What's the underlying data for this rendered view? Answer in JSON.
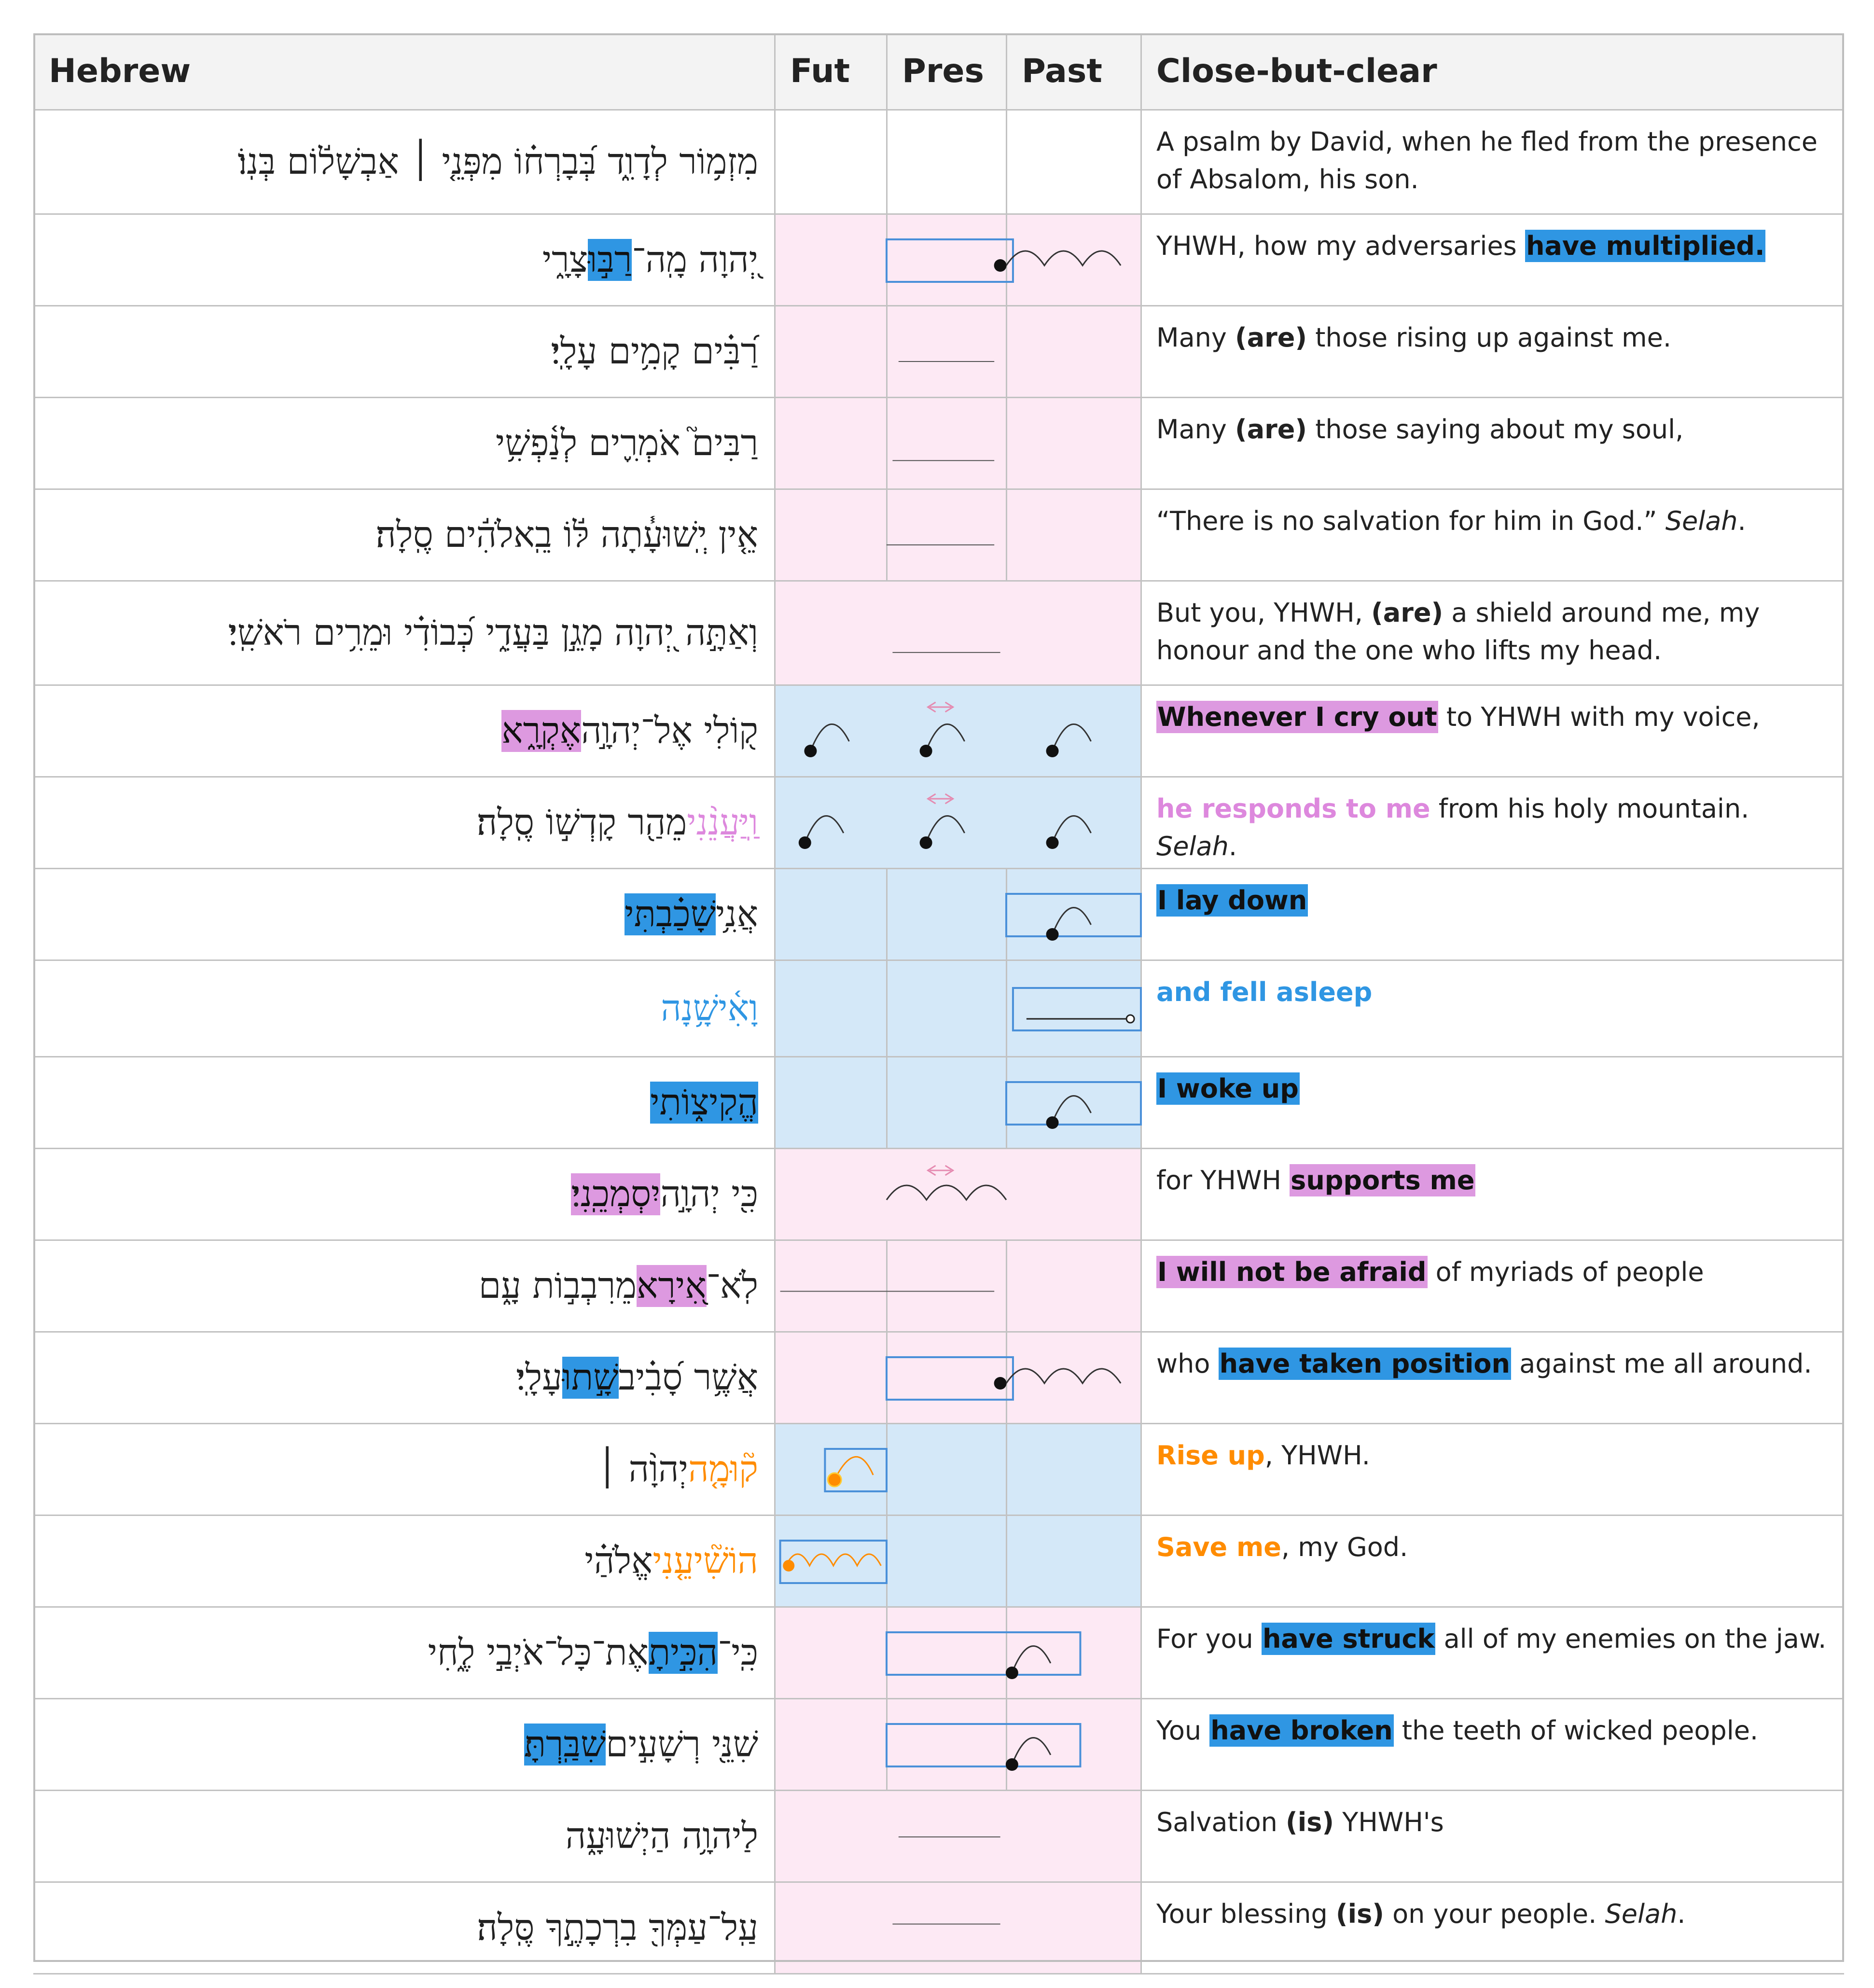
{
  "headers": {
    "hebrew": "Hebrew",
    "fut": "Fut",
    "pres": "Pres",
    "past": "Past",
    "english": "Close-but-clear"
  },
  "colors": {
    "pink_band": "#fde9f4",
    "blue_band": "#d4e8f8",
    "highlight_blue": "#2f96e3",
    "highlight_pink": "#dd99e0",
    "orange": "#ff8c00",
    "box_stroke": "#4a90d9"
  },
  "rows": [
    {
      "band": "white",
      "hebrew": [
        {
          "t": "מִזְמ֥וֹר לְדָוִ֑ד בְּ֝בָרְח֗וֹ מִפְּנֵ֤י ׀ אַבְשָׁל֬וֹם בְּנֽוֹ׃"
        }
      ],
      "english": [
        {
          "t": "A psalm by David, when he fled from the presence of Absalom, his son."
        }
      ],
      "marks": []
    },
    {
      "band": "pink",
      "hebrew": [
        {
          "t": "יְ֭הוָה מָֽה־"
        },
        {
          "t": "רַבּ֣וּ",
          "s": "hl-heb-blue"
        },
        {
          "t": " צָרָ֑י"
        }
      ],
      "english": [
        {
          "t": "YHWH, how my adversaries "
        },
        {
          "t": "have multiplied.",
          "s": "hl hl-blue"
        }
      ],
      "marks": [
        {
          "k": "box",
          "c": [
            1,
            2.05
          ]
        },
        {
          "k": "dot",
          "c": 1.95
        },
        {
          "k": "wave",
          "c": [
            2.0,
            2.85
          ]
        }
      ]
    },
    {
      "band": "pink",
      "hebrew": [
        {
          "t": "רַ֝בִּ֗ים קָמִ֥ים עָלָֽי׃"
        }
      ],
      "english": [
        {
          "t": "Many "
        },
        {
          "t": "(are)",
          "s": "b"
        },
        {
          "t": " those rising up against me."
        }
      ],
      "marks": [
        {
          "k": "line",
          "c": [
            1.1,
            1.9
          ],
          "y": 0.6
        }
      ]
    },
    {
      "band": "pink",
      "hebrew": [
        {
          "t": "רַבִּים֮ אֹמְרִ֪ים לְנַ֫פְשִׁ֥י"
        }
      ],
      "english": [
        {
          "t": "Many "
        },
        {
          "t": "(are)",
          "s": "b"
        },
        {
          "t": " those saying about my soul,"
        }
      ],
      "marks": [
        {
          "k": "line",
          "c": [
            1.05,
            1.9
          ],
          "y": 0.68
        }
      ]
    },
    {
      "band": "pink",
      "hebrew": [
        {
          "t": "אֵ֤ין יְֽשׁוּעָ֓תָה לּ֬וֹ בֵֽאלֹהִ֬ים סֶֽלָה׃"
        }
      ],
      "english": [
        {
          "t": "“There is no salvation for him in God.” "
        },
        {
          "t": "Selah",
          "s": "i"
        },
        {
          "t": "."
        }
      ],
      "marks": [
        {
          "k": "line",
          "c": [
            1.0,
            1.9
          ],
          "y": 0.6
        }
      ]
    },
    {
      "band": "pink",
      "hebrew": [
        {
          "t": "וְאַתָּ֣ה יְ֭הוָה מָגֵ֣ן בַּעֲדִ֑י כְּ֝בוֹדִ֗י וּמֵרִ֥ים רֹאשִֽׁי׃"
        }
      ],
      "english": [
        {
          "t": "But you, YHWH, "
        },
        {
          "t": "(are)",
          "s": "b"
        },
        {
          "t": " a shield around me, my honour and the one who lifts my head."
        }
      ],
      "marks": [
        {
          "k": "line",
          "c": [
            1.05,
            1.95
          ],
          "y": 0.68
        }
      ]
    },
    {
      "band": "blue",
      "hebrew": [
        {
          "t": "ק֭וֹלִי אֶל־יְהוָ֣ה "
        },
        {
          "t": "אֶקְרָ֑א",
          "s": "hl-heb-pink"
        }
      ],
      "english": [
        {
          "t": "Whenever I cry out",
          "s": "hl hl-pink"
        },
        {
          "t": " to YHWH with my voice,"
        }
      ],
      "marks": [
        {
          "k": "arc",
          "c": 0.45
        },
        {
          "k": "arc",
          "c": 1.45
        },
        {
          "k": "arc",
          "c": 2.45
        },
        {
          "k": "arrow",
          "c": 1.45
        }
      ]
    },
    {
      "band": "blue",
      "hebrew": [
        {
          "t": "וַֽיַּעֲנֵ֨נִי",
          "s": "col-pink"
        },
        {
          "t": " מֵהַ֖ר קָדְשׁ֣וֹ סֶֽלָה׃"
        }
      ],
      "english": [
        {
          "t": "he responds to me",
          "s": "b col-pink"
        },
        {
          "t": " from his holy mountain. "
        },
        {
          "t": "Selah",
          "s": "i"
        },
        {
          "t": "."
        }
      ],
      "marks": [
        {
          "k": "arc",
          "c": 0.4
        },
        {
          "k": "arc",
          "c": 1.45
        },
        {
          "k": "arc",
          "c": 2.45
        },
        {
          "k": "arrow",
          "c": 1.45
        }
      ]
    },
    {
      "band": "blue",
      "hebrew": [
        {
          "t": "אֲנִ֥י "
        },
        {
          "t": "שָׁכַ֗בְתִּי",
          "s": "hl-heb-blue"
        }
      ],
      "english": [
        {
          "t": "I lay down",
          "s": "hl hl-blue"
        }
      ],
      "marks": [
        {
          "k": "box",
          "c": [
            2.0,
            3.0
          ]
        },
        {
          "k": "arc",
          "c": 2.45
        }
      ]
    },
    {
      "band": "blue",
      "hebrew": [
        {
          "t": "וָאִ֫ישָׁ֥נָה",
          "s": "col-blue"
        }
      ],
      "english": [
        {
          "t": "and fell asleep",
          "s": "b col-blue"
        }
      ],
      "marks": [
        {
          "k": "box",
          "c": [
            2.05,
            3.0
          ]
        },
        {
          "k": "openline",
          "c": [
            2.15,
            2.9
          ]
        }
      ]
    },
    {
      "band": "blue",
      "hebrew": [
        {
          "t": "הֱקִיצ֑וֹתִי",
          "s": "hl-heb-blue"
        }
      ],
      "english": [
        {
          "t": "I woke up",
          "s": "hl hl-blue"
        }
      ],
      "marks": [
        {
          "k": "box",
          "c": [
            2.0,
            3.0
          ]
        },
        {
          "k": "arc",
          "c": 2.45
        }
      ]
    },
    {
      "band": "pink",
      "hebrew": [
        {
          "t": "כִּ֖י יְהוָ֣ה "
        },
        {
          "t": "יִסְמְכֵֽנִי",
          "s": "hl-heb-pink"
        },
        {
          "t": "׃"
        }
      ],
      "english": [
        {
          "t": "for YHWH "
        },
        {
          "t": "supports me",
          "s": "hl hl-pink"
        }
      ],
      "marks": [
        {
          "k": "wave",
          "c": [
            1.0,
            2.0
          ]
        },
        {
          "k": "arrow",
          "c": 1.45
        }
      ]
    },
    {
      "band": "pink",
      "hebrew": [
        {
          "t": "לֹֽא־"
        },
        {
          "t": "אִ֭ירָא",
          "s": "hl-heb-pink"
        },
        {
          "t": " מֵרִבְב֣וֹת עָ֑ם"
        }
      ],
      "english": [
        {
          "t": "I will not be afraid",
          "s": "hl hl-pink"
        },
        {
          "t": " of myriads of people"
        }
      ],
      "marks": [
        {
          "k": "line",
          "c": [
            0.05,
            1.9
          ],
          "y": 0.55
        }
      ]
    },
    {
      "band": "pink",
      "hebrew": [
        {
          "t": "אֲשֶׁ֥ר סָ֝בִ֗יב "
        },
        {
          "t": "שָׁ֣תוּ",
          "s": "hl-heb-blue"
        },
        {
          "t": " עָלָֽי׃"
        }
      ],
      "english": [
        {
          "t": "who "
        },
        {
          "t": "have taken position",
          "s": "hl hl-blue"
        },
        {
          "t": " against me all around."
        }
      ],
      "marks": [
        {
          "k": "box",
          "c": [
            1,
            2.05
          ]
        },
        {
          "k": "dot",
          "c": 1.95
        },
        {
          "k": "wave",
          "c": [
            2.0,
            2.85
          ]
        }
      ]
    },
    {
      "band": "blue",
      "hebrew": [
        {
          "t": "ק֘וּמָ֤ה",
          "s": "col-orange"
        },
        {
          "t": " יְהוָ֨ה ׀"
        }
      ],
      "english": [
        {
          "t": "Rise up",
          "s": "b col-orange"
        },
        {
          "t": ", YHWH."
        }
      ],
      "marks": [
        {
          "k": "box",
          "c": [
            0.45,
            1.0
          ]
        },
        {
          "k": "oarc",
          "c": 0.6
        }
      ]
    },
    {
      "band": "blue",
      "hebrew": [
        {
          "t": "הוֹשִׁ֘יעֵ֤נִי",
          "s": "col-orange"
        },
        {
          "t": " אֱלֹהַ֗י"
        }
      ],
      "english": [
        {
          "t": "Save me",
          "s": "b col-orange"
        },
        {
          "t": ", my God."
        }
      ],
      "marks": [
        {
          "k": "box",
          "c": [
            0.05,
            1.0
          ]
        },
        {
          "k": "owave",
          "c": [
            0.1,
            0.95
          ]
        }
      ]
    },
    {
      "band": "pink",
      "hebrew": [
        {
          "t": "כִּֽי־"
        },
        {
          "t": "הִכִּ֣יתָ",
          "s": "hl-heb-blue"
        },
        {
          "t": " אֶת־כָּל־אֹיְבַ֣י לֶ֑חִי"
        }
      ],
      "english": [
        {
          "t": "For you "
        },
        {
          "t": "have struck",
          "s": "hl hl-blue"
        },
        {
          "t": " all of my enemies on the jaw."
        }
      ],
      "marks": [
        {
          "k": "box",
          "c": [
            1,
            2.55
          ]
        },
        {
          "k": "arc",
          "c": 2.15
        }
      ]
    },
    {
      "band": "pink",
      "hebrew": [
        {
          "t": "שִׁנֵּ֖י רְשָׁעִ֣ים "
        },
        {
          "t": "שִׁבַּֽרְתָּ",
          "s": "hl-heb-blue"
        },
        {
          "t": "׃"
        }
      ],
      "english": [
        {
          "t": "You "
        },
        {
          "t": "have broken",
          "s": "hl hl-blue"
        },
        {
          "t": " the teeth of wicked people."
        }
      ],
      "marks": [
        {
          "k": "box",
          "c": [
            1,
            2.55
          ]
        },
        {
          "k": "arc",
          "c": 2.15
        }
      ]
    },
    {
      "band": "pink",
      "hebrew": [
        {
          "t": "לַיהוָ֥ה הַיְשׁוּעָ֑ה"
        }
      ],
      "english": [
        {
          "t": "Salvation "
        },
        {
          "t": "(is)",
          "s": "b"
        },
        {
          "t": " YHWH's"
        }
      ],
      "marks": [
        {
          "k": "line",
          "c": [
            1.1,
            1.95
          ],
          "y": 0.5
        }
      ]
    },
    {
      "band": "pink",
      "hebrew": [
        {
          "t": "עַֽל־עַמְּךָ֖ בִרְכָתֶ֣ךָ סֶּֽלָה׃"
        }
      ],
      "english": [
        {
          "t": "Your blessing "
        },
        {
          "t": "(is)",
          "s": "b"
        },
        {
          "t": " on your people. "
        },
        {
          "t": "Selah",
          "s": "i"
        },
        {
          "t": "."
        }
      ],
      "marks": [
        {
          "k": "line",
          "c": [
            1.05,
            1.95
          ],
          "y": 0.45
        }
      ]
    }
  ]
}
